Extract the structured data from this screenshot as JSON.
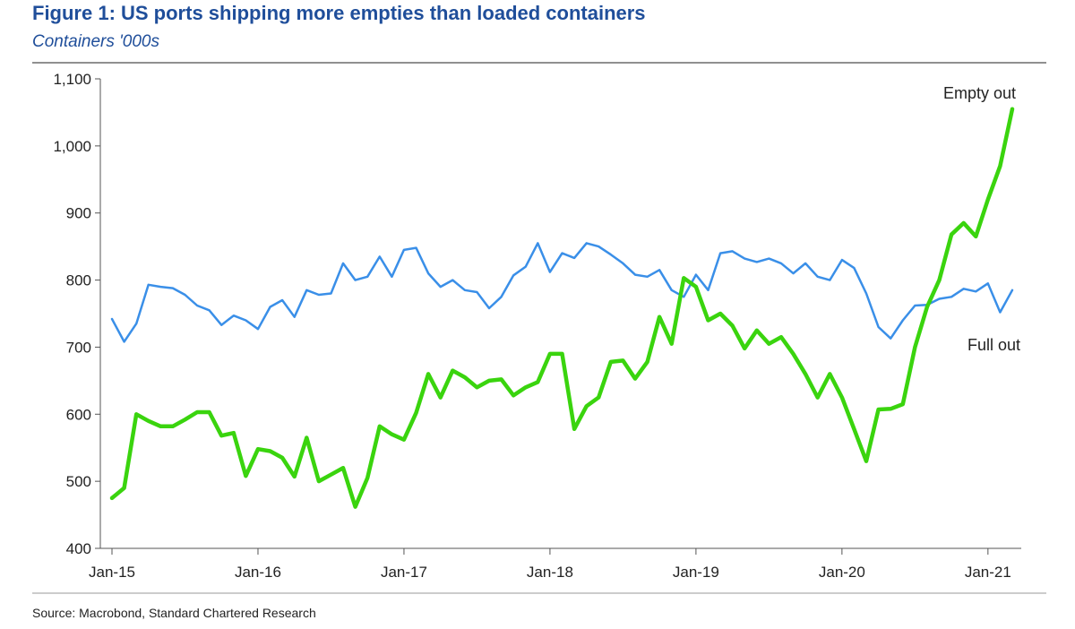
{
  "title": "Figure 1: US ports shipping more empties than loaded containers",
  "subtitle": "Containers '000s",
  "source": "Source: Macrobond, Standard Chartered Research",
  "colors": {
    "title": "#1f4e9a",
    "empty_out": "#3ad40e",
    "full_out": "#3a8fe8",
    "rule": "#6b6b6b"
  },
  "chart_data": {
    "type": "line",
    "x_start": "2015-01",
    "x_end": "2021-03",
    "x_ticks": [
      "Jan-15",
      "Jan-16",
      "Jan-17",
      "Jan-18",
      "Jan-19",
      "Jan-20",
      "Jan-21"
    ],
    "ylim": [
      400,
      1100
    ],
    "y_ticks": [
      "400",
      "500",
      "600",
      "700",
      "800",
      "900",
      "1,000",
      "1,100"
    ],
    "y_tick_values": [
      400,
      500,
      600,
      700,
      800,
      900,
      1000,
      1100
    ],
    "grid": false,
    "series": [
      {
        "name": "Empty out",
        "values": [
          475,
          490,
          600,
          590,
          582,
          582,
          592,
          603,
          603,
          568,
          572,
          508,
          548,
          545,
          535,
          507,
          565,
          500,
          510,
          520,
          462,
          505,
          582,
          570,
          562,
          602,
          660,
          625,
          665,
          655,
          640,
          650,
          652,
          628,
          640,
          648,
          690,
          690,
          578,
          612,
          625,
          678,
          680,
          653,
          678,
          745,
          705,
          803,
          790,
          740,
          750,
          732,
          698,
          725,
          705,
          715,
          690,
          660,
          625,
          660,
          625,
          578,
          530,
          607,
          608,
          615,
          700,
          760,
          800,
          868,
          885,
          865,
          920,
          970,
          1055
        ]
      },
      {
        "name": "Full out",
        "values": [
          742,
          708,
          735,
          793,
          790,
          788,
          778,
          762,
          755,
          733,
          747,
          740,
          727,
          760,
          770,
          745,
          785,
          778,
          780,
          825,
          800,
          805,
          835,
          805,
          845,
          848,
          810,
          790,
          800,
          785,
          782,
          758,
          775,
          807,
          820,
          855,
          812,
          840,
          833,
          855,
          850,
          838,
          825,
          808,
          805,
          815,
          785,
          775,
          808,
          785,
          840,
          843,
          832,
          827,
          832,
          825,
          810,
          825,
          805,
          800,
          830,
          818,
          780,
          730,
          713,
          740,
          762,
          763,
          772,
          775,
          787,
          783,
          795,
          752,
          785
        ]
      }
    ]
  }
}
